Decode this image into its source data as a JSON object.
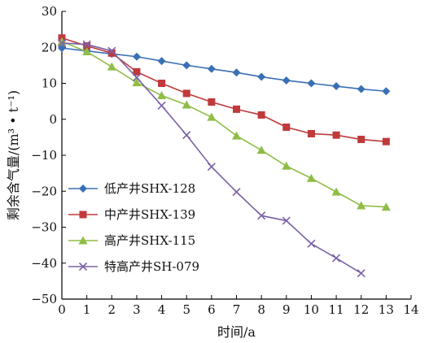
{
  "chart_data": {
    "type": "line",
    "xlabel": "时间/a",
    "ylabel": "剩余含气量/(m³ • t⁻¹)",
    "xlim": [
      0,
      14
    ],
    "ylim": [
      -50,
      30
    ],
    "x_ticks": [
      0,
      1,
      2,
      3,
      4,
      5,
      6,
      7,
      8,
      9,
      10,
      11,
      12,
      13,
      14
    ],
    "y_ticks": [
      30,
      20,
      10,
      0,
      -10,
      -20,
      -30,
      -40,
      -50
    ],
    "grid": false,
    "legend_position": "bottom-left",
    "series": [
      {
        "name": "低产井SHX-128",
        "color": "#3a6fb5",
        "marker": "diamond",
        "x": [
          0,
          1,
          2,
          3,
          4,
          5,
          6,
          7,
          8,
          9,
          10,
          11,
          12,
          13
        ],
        "y": [
          19.8,
          19.0,
          18.2,
          17.4,
          16.2,
          15.0,
          14.0,
          13.0,
          11.8,
          10.8,
          10.0,
          9.2,
          8.4,
          7.8
        ]
      },
      {
        "name": "中产井SHX-139",
        "color": "#c0393b",
        "marker": "square",
        "x": [
          0,
          1,
          2,
          3,
          4,
          5,
          6,
          7,
          8,
          9,
          10,
          11,
          12,
          13
        ],
        "y": [
          22.6,
          20.4,
          18.4,
          13.2,
          10.0,
          7.2,
          4.8,
          2.8,
          1.2,
          -2.2,
          -4.0,
          -4.4,
          -5.6,
          -6.2
        ]
      },
      {
        "name": "高产井SHX-115",
        "color": "#8fbd45",
        "marker": "triangle",
        "x": [
          0,
          1,
          2,
          3,
          4,
          5,
          6,
          7,
          8,
          9,
          10,
          11,
          12,
          13
        ],
        "y": [
          21.6,
          18.8,
          14.6,
          10.2,
          6.6,
          4.0,
          0.6,
          -4.6,
          -8.6,
          -13.0,
          -16.4,
          -20.2,
          -24.0,
          -24.4
        ]
      },
      {
        "name": "特高产井SH-079",
        "color": "#7b62a6",
        "marker": "x",
        "x": [
          0,
          1,
          2,
          3,
          4,
          5,
          6,
          7,
          8,
          9,
          10,
          11,
          12
        ],
        "y": [
          21.2,
          20.8,
          19.0,
          11.6,
          3.8,
          -4.4,
          -13.2,
          -20.2,
          -26.8,
          -28.2,
          -34.6,
          -38.6,
          -42.8
        ]
      }
    ]
  }
}
